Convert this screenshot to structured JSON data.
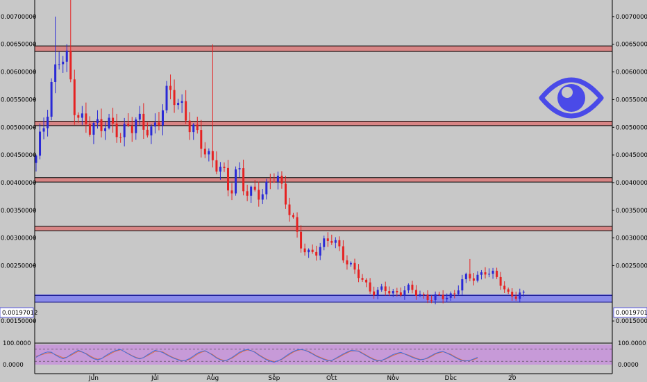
{
  "chart_data": {
    "type": "candlestick",
    "title": "",
    "price_axis": {
      "ylim": [
        0.0011,
        0.0073
      ],
      "ticks": [
        "0.00700000",
        "0.00650000",
        "0.00600000",
        "0.00550000",
        "0.00500000",
        "0.00450000",
        "0.00400000",
        "0.00350000",
        "0.00300000",
        "0.00250000",
        "0.00150000"
      ],
      "tick_values": [
        0.007,
        0.0065,
        0.006,
        0.0055,
        0.005,
        0.0045,
        0.004,
        0.0035,
        0.003,
        0.0025,
        0.0015
      ],
      "current_price_label": "0.00197012",
      "current_price": 0.00197012
    },
    "time_axis": {
      "labels": [
        "Jun",
        "Jul",
        "Aug",
        "Sep",
        "Oct",
        "Nov",
        "Dec",
        "20"
      ],
      "label_index": [
        15,
        31,
        46,
        62,
        77,
        93,
        108,
        124
      ]
    },
    "resistance_zones": [
      {
        "low": 0.00637,
        "high": 0.00647
      },
      {
        "low": 0.00503,
        "high": 0.00511
      },
      {
        "low": 0.00401,
        "high": 0.00409
      },
      {
        "low": 0.00313,
        "high": 0.00321
      }
    ],
    "support_zone": {
      "low": 0.00184,
      "high": 0.00196
    },
    "series_key": [
      0.0044,
      0.00505,
      0.00585,
      0.0062,
      0.00615,
      0.00545,
      0.0051,
      0.0049,
      0.00505,
      0.0052,
      0.0049,
      0.0048,
      0.00515,
      0.00512,
      0.0049,
      0.00495,
      0.0053,
      0.00555,
      0.0055,
      0.0054,
      0.005,
      0.0047,
      0.0046,
      0.0044,
      0.0042,
      0.00375,
      0.0044,
      0.0038,
      0.00375,
      0.00385,
      0.004,
      0.0041,
      0.00375,
      0.0035,
      0.0029,
      0.00265,
      0.0028,
      0.0029,
      0.00295,
      0.00285,
      0.00265,
      0.0024,
      0.00225,
      0.0021,
      0.00203,
      0.00205,
      0.002,
      0.00205,
      0.00207,
      0.002,
      0.00197,
      0.00192,
      0.0019,
      0.00195,
      0.002,
      0.0022,
      0.00228,
      0.00233,
      0.0024,
      0.0023,
      0.00223,
      0.002,
      0.00192,
      0.00197
    ],
    "oscillator": {
      "ticks": [
        "100.0000",
        "0.0000"
      ],
      "tick_values": [
        100,
        0
      ],
      "ylim": [
        0,
        100
      ],
      "bands": [
        20,
        80
      ],
      "k_key": [
        40,
        60,
        70,
        45,
        30,
        55,
        75,
        60,
        35,
        25,
        50,
        70,
        80,
        60,
        40,
        30,
        55,
        75,
        65,
        45,
        30,
        20,
        35,
        60,
        75,
        55,
        30,
        20,
        40,
        65,
        80,
        70,
        45,
        25,
        15,
        30,
        55,
        75,
        80,
        65,
        45,
        30,
        20,
        40,
        60,
        75,
        70,
        50,
        30,
        20,
        35,
        55,
        65,
        50,
        35,
        25,
        40,
        60,
        70,
        55,
        35,
        20,
        25,
        40
      ],
      "d_key": [
        45,
        55,
        65,
        50,
        35,
        50,
        70,
        62,
        40,
        28,
        45,
        65,
        78,
        62,
        42,
        32,
        50,
        70,
        68,
        48,
        32,
        22,
        30,
        55,
        72,
        58,
        33,
        22,
        36,
        60,
        77,
        72,
        48,
        28,
        18,
        28,
        50,
        72,
        79,
        68,
        48,
        33,
        22,
        36,
        56,
        72,
        72,
        53,
        33,
        22,
        32,
        50,
        62,
        53,
        38,
        27,
        36,
        56,
        68,
        58,
        38,
        23,
        23,
        36
      ]
    },
    "colors": {
      "up": "#2929d6",
      "down": "#e52222",
      "zone_fill": "#d88585",
      "zone_edge": "#000000",
      "support_fill": "#8a8bea",
      "oscillator_fill": "#c79ad8",
      "k_line": "#3d6fe0",
      "d_line": "#e06a3d",
      "current_price_line": "#3a3ad6"
    },
    "watermark_icon": "eye-icon",
    "grid": false,
    "candles": 128
  }
}
